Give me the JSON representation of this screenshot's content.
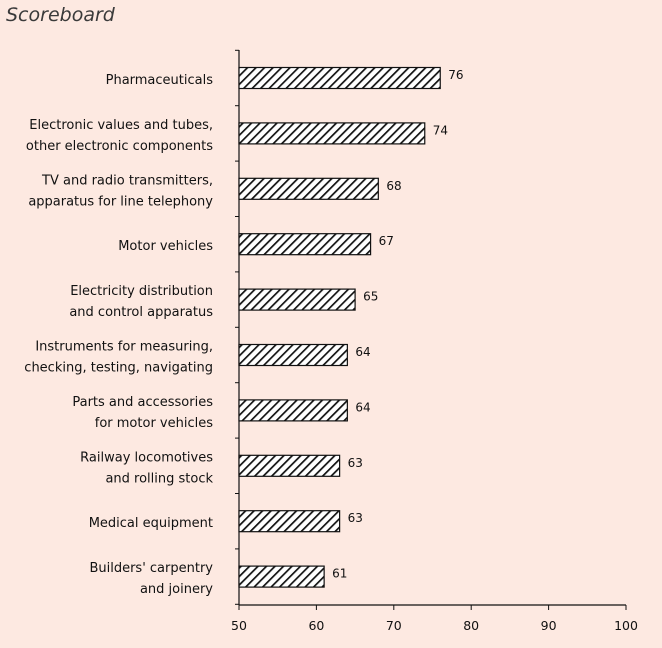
{
  "title": "Scoreboard",
  "chart_data": {
    "type": "bar",
    "orientation": "horizontal",
    "title": "Scoreboard",
    "categories": [
      [
        "Pharmaceuticals"
      ],
      [
        "Electronic values and tubes,",
        "other electronic components"
      ],
      [
        "TV and radio transmitters,",
        "apparatus for line telephony"
      ],
      [
        "Motor vehicles"
      ],
      [
        "Electricity distribution",
        "and control apparatus"
      ],
      [
        "Instruments for measuring,",
        "checking, testing, navigating"
      ],
      [
        "Parts and accessories",
        "for motor vehicles"
      ],
      [
        "Railway locomotives",
        "and rolling stock"
      ],
      [
        "Medical equipment"
      ],
      [
        "Builders' carpentry",
        "and joinery"
      ]
    ],
    "values": [
      76,
      74,
      68,
      67,
      65,
      64,
      64,
      63,
      63,
      61
    ],
    "xlim": [
      50,
      100
    ],
    "xticks": [
      50,
      60,
      70,
      80,
      90,
      100
    ],
    "xlabel": "",
    "ylabel": "",
    "grid": false,
    "bar_fill": "hatched-diagonal",
    "colors": {
      "background": "#fde9e1",
      "bar_stroke": "#111111",
      "bar_hatch": "#111111"
    }
  }
}
